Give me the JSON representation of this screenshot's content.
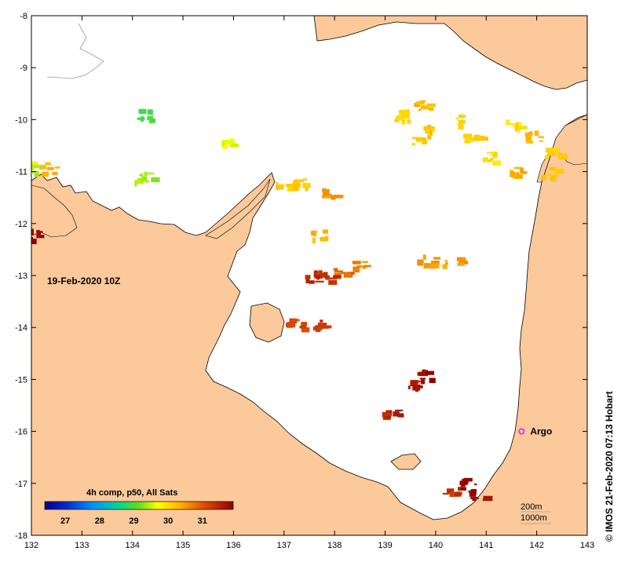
{
  "map": {
    "date_label": "19-Feb-2020 10Z",
    "credit": "© IMOS 21-Feb-2020 07:13 Hobart",
    "colorbar_title": "4h comp, p50, All Sats",
    "colorbar_ticks": [
      "27",
      "28",
      "29",
      "30",
      "31"
    ],
    "colorbar_values": [
      27,
      28,
      29,
      30,
      31
    ],
    "colorbar_range": [
      26.4,
      31.9
    ],
    "marker": {
      "label": "Argo",
      "lon": 141.7,
      "lat": -16.0,
      "color": "#e040e0"
    },
    "depth_contours": [
      "200m",
      "1000m"
    ],
    "lon_ticks": [
      "132",
      "133",
      "134",
      "135",
      "136",
      "137",
      "138",
      "139",
      "140",
      "141",
      "142",
      "143"
    ],
    "lat_ticks": [
      "-8",
      "-9",
      "-10",
      "-11",
      "-12",
      "-13",
      "-14",
      "-15",
      "-16",
      "-17",
      "-18"
    ],
    "lon_range": [
      132,
      143
    ],
    "lat_range": [
      -18,
      -8
    ],
    "land_color": "#fbc99a",
    "coast_color": "#000000"
  },
  "sst_patches": [
    {
      "lon": 141.9,
      "lat": -10.3,
      "sst": 30.3
    },
    {
      "lon": 142.3,
      "lat": -10.6,
      "sst": 30.1
    },
    {
      "lon": 141.5,
      "lat": -10.1,
      "sst": 30.0
    },
    {
      "lon": 140.5,
      "lat": -10.0,
      "sst": 30.0
    },
    {
      "lon": 140.7,
      "lat": -10.3,
      "sst": 30.1
    },
    {
      "lon": 139.9,
      "lat": -10.2,
      "sst": 30.2
    },
    {
      "lon": 139.3,
      "lat": -9.9,
      "sst": 30.1
    },
    {
      "lon": 139.7,
      "lat": -9.7,
      "sst": 30.3
    },
    {
      "lon": 141.1,
      "lat": -10.7,
      "sst": 30.0
    },
    {
      "lon": 141.6,
      "lat": -11.0,
      "sst": 30.4
    },
    {
      "lon": 142.2,
      "lat": -11.0,
      "sst": 30.2
    },
    {
      "lon": 139.7,
      "lat": -10.4,
      "sst": 30.1
    },
    {
      "lon": 136.9,
      "lat": -11.2,
      "sst": 30.1
    },
    {
      "lon": 137.3,
      "lat": -11.2,
      "sst": 30.2
    },
    {
      "lon": 137.9,
      "lat": -11.4,
      "sst": 30.5
    },
    {
      "lon": 137.7,
      "lat": -12.2,
      "sst": 30.3
    },
    {
      "lon": 138.1,
      "lat": -12.9,
      "sst": 30.9
    },
    {
      "lon": 137.5,
      "lat": -13.0,
      "sst": 31.5
    },
    {
      "lon": 137.8,
      "lat": -13.0,
      "sst": 31.4
    },
    {
      "lon": 138.5,
      "lat": -12.8,
      "sst": 30.6
    },
    {
      "lon": 139.8,
      "lat": -12.7,
      "sst": 30.5
    },
    {
      "lon": 140.3,
      "lat": -12.7,
      "sst": 30.5
    },
    {
      "lon": 137.2,
      "lat": -13.9,
      "sst": 31.2
    },
    {
      "lon": 137.7,
      "lat": -13.9,
      "sst": 31.3
    },
    {
      "lon": 139.8,
      "lat": -14.9,
      "sst": 31.8
    },
    {
      "lon": 139.5,
      "lat": -15.1,
      "sst": 31.6
    },
    {
      "lon": 139.1,
      "lat": -15.6,
      "sst": 31.5
    },
    {
      "lon": 140.6,
      "lat": -17.0,
      "sst": 31.9
    },
    {
      "lon": 140.8,
      "lat": -17.2,
      "sst": 31.8
    },
    {
      "lon": 140.3,
      "lat": -17.2,
      "sst": 31.3
    },
    {
      "lon": 132.1,
      "lat": -10.9,
      "sst": 29.5
    },
    {
      "lon": 132.3,
      "lat": -10.9,
      "sst": 30.3
    },
    {
      "lon": 135.9,
      "lat": -10.4,
      "sst": 29.6
    },
    {
      "lon": 134.2,
      "lat": -11.1,
      "sst": 29.4
    },
    {
      "lon": 132.1,
      "lat": -12.2,
      "sst": 31.8
    },
    {
      "lon": 134.2,
      "lat": -9.9,
      "sst": 29.0
    }
  ]
}
